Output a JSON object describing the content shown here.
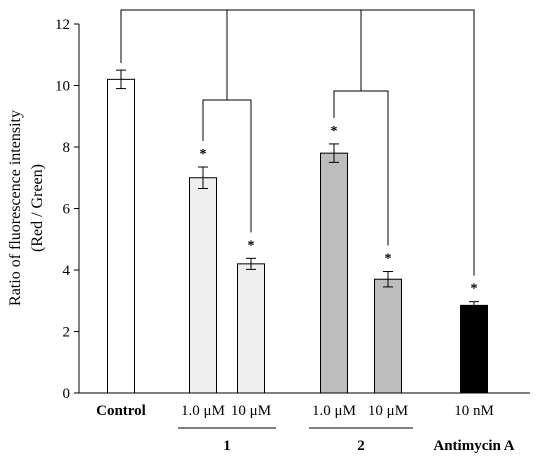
{
  "chart_data": {
    "type": "bar",
    "ylabel_line1": "Ratio of fluorescence intensity",
    "ylabel_line2": "(Red / Green)",
    "ylim": [
      0,
      12
    ],
    "yticks": [
      "0",
      "2",
      "4",
      "6",
      "8",
      "10",
      "12"
    ],
    "grid": false,
    "legend": "none",
    "bars": [
      {
        "value": 10.2,
        "error": 0.3,
        "color": "#ffffff",
        "label": "Control",
        "significant": false
      },
      {
        "value": 7.0,
        "error": 0.35,
        "color": "#efefef",
        "label": "1.0 μM",
        "significant": true
      },
      {
        "value": 4.2,
        "error": 0.18,
        "color": "#efefef",
        "label": "10 μM",
        "significant": true
      },
      {
        "value": 7.8,
        "error": 0.3,
        "color": "#bdbdbd",
        "label": "1.0 μM",
        "significant": true
      },
      {
        "value": 3.7,
        "error": 0.25,
        "color": "#bdbdbd",
        "label": "10 μM",
        "significant": true
      },
      {
        "value": 2.85,
        "error": 0.12,
        "color": "#000000",
        "label": "10 nM",
        "significant": true
      }
    ],
    "groups": [
      {
        "label": "1"
      },
      {
        "label": "2"
      },
      {
        "label": "Antimycin A"
      }
    ],
    "significance_marker": "*"
  }
}
